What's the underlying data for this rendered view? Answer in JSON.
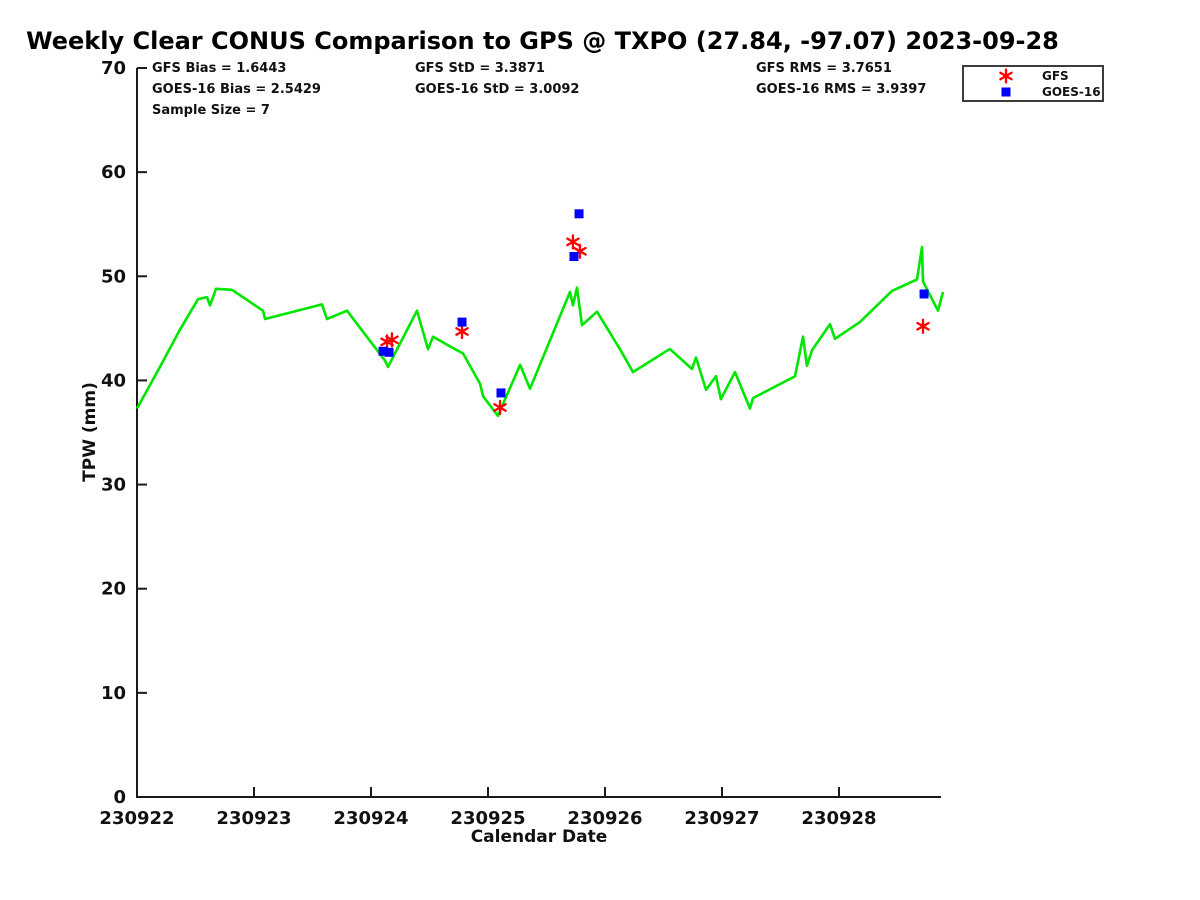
{
  "chart_data": {
    "type": "line",
    "title": "Weekly Clear CONUS Comparison to GPS @ TXPO (27.84, -97.07) 2023-09-28",
    "xlabel": "Calendar Date",
    "ylabel": "TPW (mm)",
    "ylim": [
      0,
      70
    ],
    "yticks": [
      0,
      10,
      20,
      30,
      40,
      50,
      60,
      70
    ],
    "xticks": {
      "labels": [
        "230922",
        "230923",
        "230924",
        "230925",
        "230926",
        "230927",
        "230928"
      ],
      "days": [
        0,
        1,
        2,
        3,
        4,
        5,
        6
      ]
    },
    "xlim_days": [
      0,
      6.87
    ],
    "grid": false,
    "legend_position": "top-right-outside",
    "colors": {
      "gps_line": "#00e600",
      "gfs": "#ff0000",
      "goes16": "#0000ff",
      "axis": "#1a1a1a"
    },
    "series": [
      {
        "name": "GPS",
        "type": "line",
        "color": "#00e600",
        "points": [
          [
            0.0,
            37.3
          ],
          [
            0.197,
            41.3
          ],
          [
            0.368,
            44.9
          ],
          [
            0.521,
            47.8
          ],
          [
            0.598,
            48.0
          ],
          [
            0.624,
            47.2
          ],
          [
            0.675,
            48.8
          ],
          [
            0.812,
            48.7
          ],
          [
            1.077,
            46.7
          ],
          [
            1.094,
            45.9
          ],
          [
            1.581,
            47.3
          ],
          [
            1.624,
            45.9
          ],
          [
            1.795,
            46.7
          ],
          [
            2.12,
            41.9
          ],
          [
            2.145,
            41.3
          ],
          [
            2.393,
            46.7
          ],
          [
            2.487,
            43.0
          ],
          [
            2.53,
            44.2
          ],
          [
            2.735,
            42.9
          ],
          [
            2.786,
            42.6
          ],
          [
            2.932,
            39.7
          ],
          [
            2.957,
            38.5
          ],
          [
            3.085,
            36.6
          ],
          [
            3.274,
            41.5
          ],
          [
            3.359,
            39.2
          ],
          [
            3.701,
            48.5
          ],
          [
            3.726,
            47.2
          ],
          [
            3.761,
            48.9
          ],
          [
            3.803,
            45.3
          ],
          [
            3.932,
            46.6
          ],
          [
            4.128,
            43.0
          ],
          [
            4.239,
            40.8
          ],
          [
            4.538,
            42.9
          ],
          [
            4.556,
            43.0
          ],
          [
            4.744,
            41.1
          ],
          [
            4.778,
            42.2
          ],
          [
            4.863,
            39.1
          ],
          [
            4.949,
            40.4
          ],
          [
            4.991,
            38.2
          ],
          [
            5.111,
            40.8
          ],
          [
            5.239,
            37.3
          ],
          [
            5.265,
            38.3
          ],
          [
            5.624,
            40.4
          ],
          [
            5.692,
            44.2
          ],
          [
            5.726,
            41.4
          ],
          [
            5.769,
            42.9
          ],
          [
            5.923,
            45.4
          ],
          [
            5.966,
            44.0
          ],
          [
            6.179,
            45.6
          ],
          [
            6.453,
            48.6
          ],
          [
            6.667,
            49.7
          ],
          [
            6.709,
            52.8
          ],
          [
            6.718,
            49.5
          ],
          [
            6.846,
            46.7
          ],
          [
            6.889,
            48.5
          ]
        ]
      },
      {
        "name": "GFS",
        "type": "scatter",
        "marker": "asterisk",
        "color": "#ff0000",
        "points": [
          [
            2.137,
            43.7
          ],
          [
            2.179,
            43.9
          ],
          [
            2.778,
            44.7
          ],
          [
            3.103,
            37.4
          ],
          [
            3.726,
            53.3
          ],
          [
            3.786,
            52.4
          ],
          [
            6.718,
            45.2
          ]
        ]
      },
      {
        "name": "GOES-16",
        "type": "scatter",
        "marker": "square",
        "color": "#0000ff",
        "points": [
          [
            2.103,
            42.8
          ],
          [
            2.154,
            42.7
          ],
          [
            2.778,
            45.6
          ],
          [
            3.111,
            38.8
          ],
          [
            3.735,
            51.9
          ],
          [
            3.778,
            56.0
          ],
          [
            6.727,
            48.3
          ]
        ]
      }
    ]
  },
  "stats": {
    "gfs_bias": "GFS Bias = 1.6443",
    "goes_bias": "GOES-16 Bias = 2.5429",
    "sample_size": "Sample Size = 7",
    "gfs_std": "GFS StD = 3.3871",
    "goes_std": "GOES-16 StD = 3.0092",
    "gfs_rms": "GFS RMS = 3.7651",
    "goes_rms": "GOES-16 RMS = 3.9397"
  },
  "legend": {
    "items": [
      {
        "label": "GFS",
        "marker": "asterisk-icon",
        "color": "#ff0000"
      },
      {
        "label": "GOES-16",
        "marker": "square-icon",
        "color": "#0000ff"
      }
    ]
  }
}
